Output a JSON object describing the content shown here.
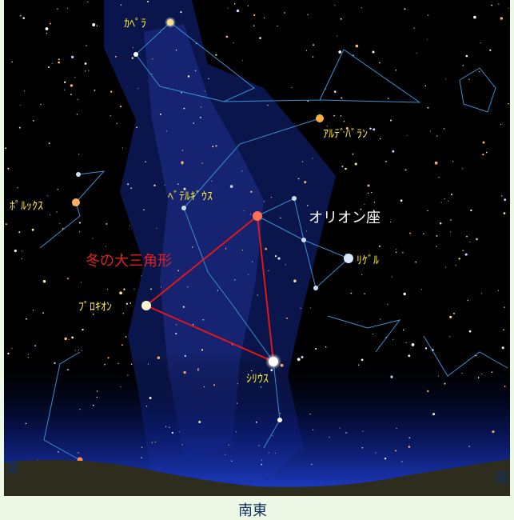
{
  "labels": {
    "capella": "ｶﾍﾟﾗ",
    "aldebaran": "ｱﾙﾃﾞﾊﾞﾗﾝ",
    "betelgeuse": "ﾍﾞﾃﾙｷﾞｳｽ",
    "orion": "オリオン座",
    "pollux": "ﾎﾟﾙｯｸｽ",
    "rigel": "ﾘｹﾞﾙ",
    "triangle": "冬の大三角形",
    "procyon": "ﾌﾟﾛｷｵﾝ",
    "sirius": "ｼﾘｳｽ"
  },
  "directions": {
    "east": "東",
    "southeast": "南東",
    "south": "南"
  }
}
